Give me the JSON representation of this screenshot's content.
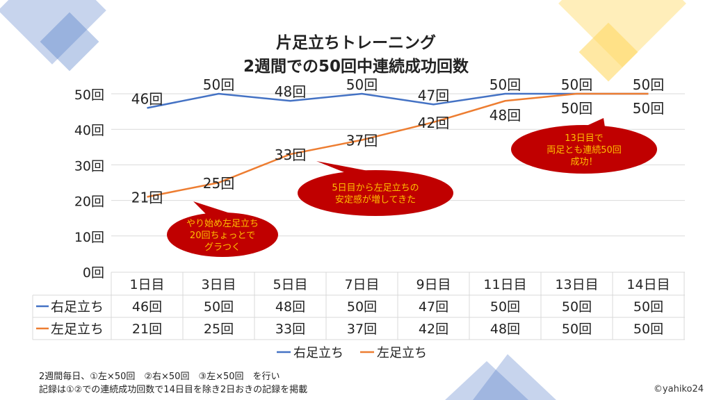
{
  "chart_data": {
    "type": "line",
    "title": [
      "片足立ちトレーニング",
      "2週間での50回中連続成功回数"
    ],
    "categories": [
      "1日目",
      "3日目",
      "5日目",
      "7日目",
      "9日目",
      "11日目",
      "13日目",
      "14日目"
    ],
    "series": [
      {
        "name": "右足立ち",
        "color": "#4472C4",
        "values": [
          46,
          50,
          48,
          50,
          47,
          50,
          50,
          50
        ]
      },
      {
        "name": "左足立ち",
        "color": "#ED7D31",
        "values": [
          21,
          25,
          33,
          37,
          42,
          48,
          50,
          50
        ]
      }
    ],
    "unit": "回",
    "yticks": [
      "0回",
      "10回",
      "20回",
      "30回",
      "40回",
      "50回"
    ],
    "ylim": [
      0,
      50
    ],
    "grid": true,
    "legend": "bottom",
    "data_table": true,
    "annotations": [
      {
        "lines": [
          "やり始め左足立ち",
          "20回ちょっとで",
          "グラつく"
        ]
      },
      {
        "lines": [
          "5日目から左足立ちの",
          "安定感が増してきた"
        ]
      },
      {
        "lines": [
          "13日目で",
          "両足とも連続50回",
          "成功！"
        ]
      }
    ]
  },
  "footer": {
    "line1": "2週間毎日、①左×50回　②右×50回　③左×50回　を行い",
    "line2": "記録は①②での連続成功回数で14日目を除き2日おきの記録を掲載",
    "copyright": "©yahiko24"
  }
}
